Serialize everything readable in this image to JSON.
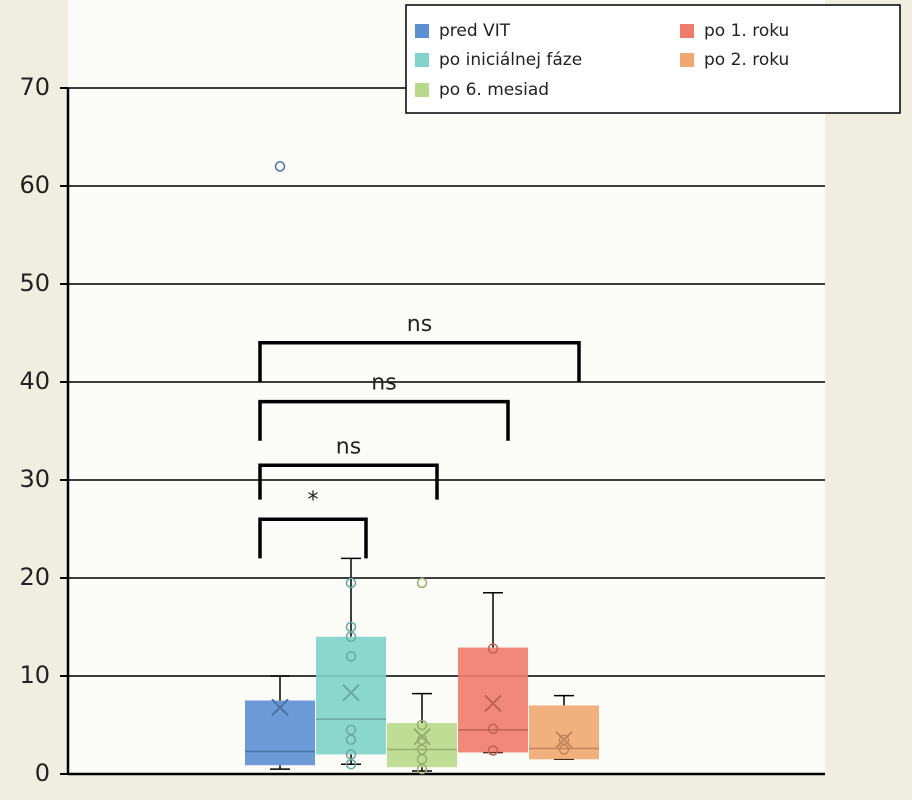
{
  "chart_data": {
    "type": "box",
    "ylim": [
      0,
      70
    ],
    "yticks": [
      0,
      10,
      20,
      30,
      40,
      50,
      60,
      70
    ],
    "grid": true,
    "series": [
      {
        "name": "pred VIT",
        "color": "#5b8fd1",
        "q1": 0.9,
        "median": 2.3,
        "q3": 7.5,
        "mean": 6.8,
        "whisker_low": 0.5,
        "whisker_high": 10,
        "points": [],
        "outliers": [
          62
        ]
      },
      {
        "name": "po iniciálnej fáze",
        "color": "#7fd3c8",
        "q1": 2,
        "median": 5.6,
        "q3": 14,
        "mean": 8.3,
        "whisker_low": 1,
        "whisker_high": 22,
        "points": [
          19.5,
          15,
          14,
          12,
          4.5,
          3.5,
          2,
          1
        ],
        "outliers": []
      },
      {
        "name": "po 6. mesiad",
        "color": "#b9d98a",
        "q1": 0.7,
        "median": 2.5,
        "q3": 5.2,
        "mean": 3.8,
        "whisker_low": 0.3,
        "whisker_high": 8.2,
        "points": [
          5,
          3.5,
          2.5,
          1.5,
          0.5
        ],
        "outliers": [
          19.5
        ]
      },
      {
        "name": "po 1. roku",
        "color": "#ef7b6a",
        "q1": 2.2,
        "median": 4.5,
        "q3": 12.9,
        "mean": 7.2,
        "whisker_low": 2.2,
        "whisker_high": 18.5,
        "points": [
          12.8,
          4.6,
          2.4
        ],
        "outliers": []
      },
      {
        "name": "po 2. roku",
        "color": "#f0a870",
        "q1": 1.5,
        "median": 2.6,
        "q3": 7,
        "mean": 3.5,
        "whisker_low": 1.5,
        "whisker_high": 8,
        "points": [
          3.5,
          2.5
        ],
        "outliers": []
      }
    ],
    "annotations": [
      {
        "text": "ns",
        "from": 0,
        "to": 4,
        "y": 44,
        "y_low": 40
      },
      {
        "text": "ns",
        "from": 0,
        "to": 3,
        "y": 38,
        "y_low": 34
      },
      {
        "text": "ns",
        "from": 0,
        "to": 2,
        "y": 31.5,
        "y_low": 28
      },
      {
        "text": "*",
        "from": 0,
        "to": 1,
        "y": 26,
        "y_low": 22
      }
    ]
  }
}
